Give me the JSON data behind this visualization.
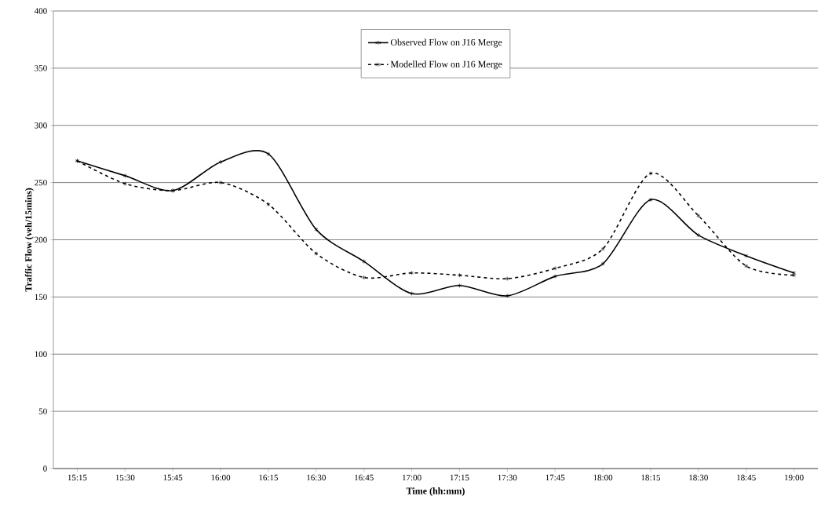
{
  "chart_data": {
    "type": "line",
    "xlabel": "Time (hh:mm)",
    "ylabel": "Traffic Flow (veh/15mins)",
    "categories": [
      "15:15",
      "15:30",
      "15:45",
      "16:00",
      "16:15",
      "16:30",
      "16:45",
      "17:00",
      "17:15",
      "17:30",
      "17:45",
      "18:00",
      "18:15",
      "18:30",
      "18:45",
      "19:00"
    ],
    "series": [
      {
        "name": "Observed Flow on J16 Merge",
        "color": "#000000",
        "line_style": "solid",
        "values": [
          269,
          256,
          243,
          268,
          275,
          209,
          181,
          153,
          160,
          151,
          168,
          179,
          235,
          204,
          186,
          171
        ]
      },
      {
        "name": "Modelled Flow on J16 Merge",
        "color": "#000000",
        "line_style": "dashed",
        "values": [
          269,
          249,
          243,
          250,
          231,
          188,
          167,
          171,
          169,
          166,
          175,
          192,
          258,
          221,
          177,
          169
        ]
      }
    ],
    "ylim": [
      0,
      400
    ],
    "yticks": [
      0,
      50,
      100,
      150,
      200,
      250,
      300,
      350,
      400
    ],
    "grid": "y",
    "legend": "top",
    "marker": "cross"
  }
}
